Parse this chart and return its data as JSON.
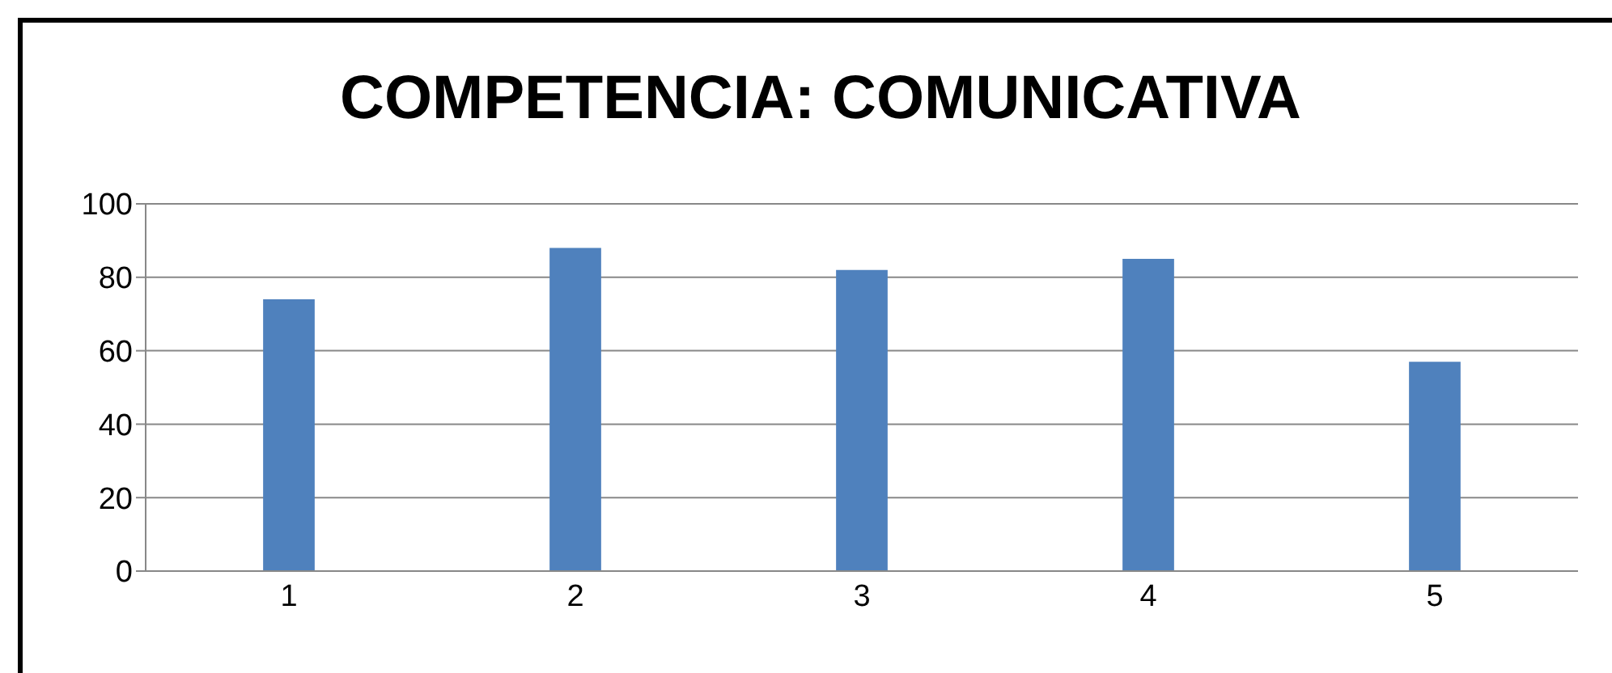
{
  "chart_data": {
    "type": "bar",
    "title": "COMPETENCIA: COMUNICATIVA",
    "categories": [
      "1",
      "2",
      "3",
      "4",
      "5"
    ],
    "values": [
      74,
      88,
      82,
      85,
      57
    ],
    "color": "#4f81bd",
    "ylim": [
      0,
      100
    ],
    "yticks": [
      0,
      20,
      40,
      60,
      80,
      100
    ],
    "grid": "y"
  }
}
